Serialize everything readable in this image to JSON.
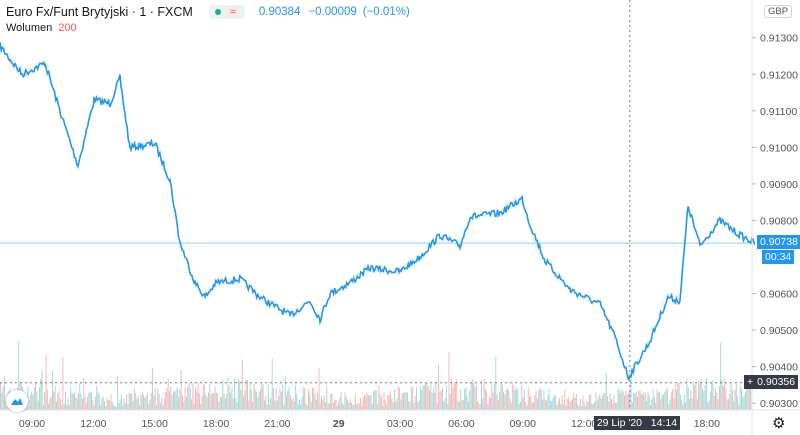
{
  "header": {
    "symbol": "Euro Fx/Funt Brytyjski · 1 · FXCM",
    "price": "0.90384",
    "change": "−0.00009",
    "change_pct": "(−0.01%)",
    "market_status_icon": "market-open-dot",
    "wave_icon": "approx-icon"
  },
  "volume": {
    "label": "Wolumen",
    "value": "200"
  },
  "currency": "GBP",
  "badges": {
    "last_price": "0.90738",
    "countdown": "00:34",
    "crosshair_price": "0.90356",
    "crosshair_time": "29 Lip '20   14:14"
  },
  "colors": {
    "line": "#2196f3",
    "up": "#26a69a",
    "down": "#ef5350",
    "last_price_line": "#90caf9"
  },
  "chart_data": {
    "type": "line",
    "ylim": [
      0.90275,
      0.9142
    ],
    "yticks": [
      "0.91300",
      "0.91200",
      "0.91100",
      "0.91000",
      "0.90900",
      "0.90800",
      "0.90600",
      "0.90500",
      "0.90400",
      "0.90300"
    ],
    "xticks": [
      {
        "t": "28 09:00",
        "label": "09:00"
      },
      {
        "t": "28 12:00",
        "label": "12:00"
      },
      {
        "t": "28 15:00",
        "label": "15:00"
      },
      {
        "t": "28 18:00",
        "label": "18:00"
      },
      {
        "t": "28 21:00",
        "label": "21:00"
      },
      {
        "t": "29 00:00",
        "label": "29"
      },
      {
        "t": "29 03:00",
        "label": "03:00"
      },
      {
        "t": "29 06:00",
        "label": "06:00"
      },
      {
        "t": "29 09:00",
        "label": "09:00"
      },
      {
        "t": "29 12:00",
        "label": "12:00"
      },
      {
        "t": "29 18:00",
        "label": "18:00"
      }
    ],
    "points": [
      [
        "28 07:26",
        0.91278
      ],
      [
        "28 07:56",
        0.9124
      ],
      [
        "28 08:31",
        0.912
      ],
      [
        "28 09:38",
        0.9123
      ],
      [
        "28 10:22",
        0.911
      ],
      [
        "28 11:15",
        0.9095
      ],
      [
        "28 12:02",
        0.9113
      ],
      [
        "28 12:49",
        0.9112
      ],
      [
        "28 13:18",
        0.9119
      ],
      [
        "28 13:47",
        0.91
      ],
      [
        "28 15:01",
        0.9101
      ],
      [
        "28 15:45",
        0.9091
      ],
      [
        "28 16:14",
        0.9074
      ],
      [
        "28 16:58",
        0.9063
      ],
      [
        "28 17:28",
        0.9059
      ],
      [
        "28 18:00",
        0.9063
      ],
      [
        "28 19:10",
        0.9064
      ],
      [
        "28 20:09",
        0.9059
      ],
      [
        "28 21:37",
        0.9054
      ],
      [
        "28 22:35",
        0.9058
      ],
      [
        "28 23:05",
        0.9053
      ],
      [
        "28 23:34",
        0.906
      ],
      [
        "29 00:33",
        0.9063
      ],
      [
        "29 01:32",
        0.9067
      ],
      [
        "29 02:59",
        0.9066
      ],
      [
        "29 03:58",
        0.907
      ],
      [
        "29 04:57",
        0.9076
      ],
      [
        "29 05:56",
        0.9073
      ],
      [
        "29 06:25",
        0.9081
      ],
      [
        "29 07:53",
        0.9082
      ],
      [
        "29 08:58",
        0.9086
      ],
      [
        "29 09:21",
        0.9079
      ],
      [
        "29 10:05",
        0.9069
      ],
      [
        "29 11:19",
        0.9061
      ],
      [
        "29 12:47",
        0.9057
      ],
      [
        "29 13:31",
        0.9048
      ],
      [
        "29 14:10",
        0.9037
      ],
      [
        "29 15:13",
        0.9047
      ],
      [
        "29 16:06",
        0.9059
      ],
      [
        "29 16:41",
        0.9058
      ],
      [
        "29 17:05",
        0.9084
      ],
      [
        "29 17:40",
        0.9073
      ],
      [
        "29 18:38",
        0.908
      ],
      [
        "29 19:37",
        0.9076
      ],
      [
        "29 20:21",
        0.90738
      ]
    ],
    "last_price": 0.90738,
    "crosshair": {
      "t": "29 14:14",
      "price": 0.90356
    },
    "grid": false
  }
}
